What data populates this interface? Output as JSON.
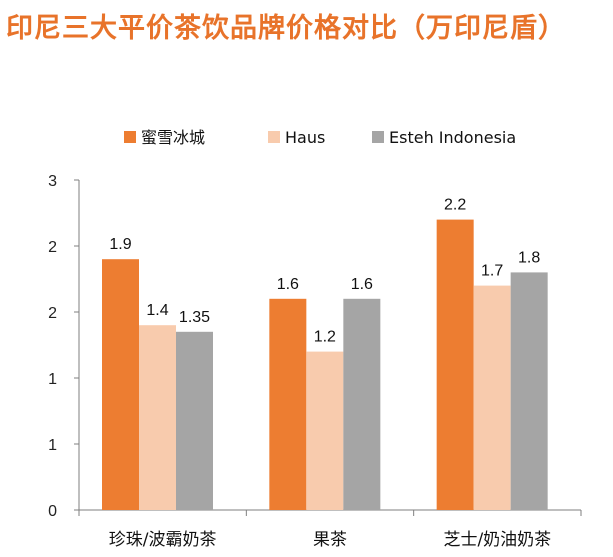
{
  "title": "印尼三大平价茶饮品牌价格对比（万印尼盾）",
  "chart_data": {
    "type": "bar",
    "title": "印尼三大平价茶饮品牌价格对比（万印尼盾）",
    "categories": [
      "珍珠/波霸奶茶",
      "果茶",
      "芝士/奶油奶茶"
    ],
    "series": [
      {
        "name": "蜜雪冰城",
        "color": "#ed7d31",
        "values": [
          1.9,
          1.6,
          2.2
        ],
        "labels": [
          "1.9",
          "1.6",
          "2.2"
        ]
      },
      {
        "name": "Haus",
        "color": "#f8cbad",
        "values": [
          1.4,
          1.2,
          1.7
        ],
        "labels": [
          "1.4",
          "1.2",
          "1.7"
        ]
      },
      {
        "name": "Esteh Indonesia",
        "color": "#a5a5a5",
        "values": [
          1.35,
          1.6,
          1.8
        ],
        "labels": [
          "1.35",
          "1.6",
          "1.8"
        ]
      }
    ],
    "y_ticks": [
      "0",
      "1",
      "1",
      "2",
      "2",
      "3"
    ],
    "ylim": [
      0,
      2.5
    ],
    "grid": false,
    "legend": "top"
  }
}
